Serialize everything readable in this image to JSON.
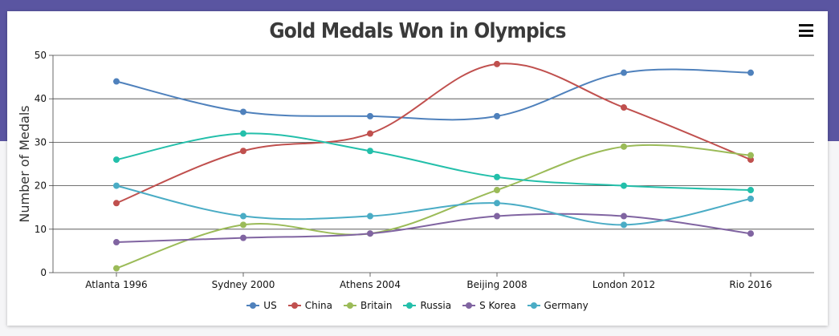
{
  "chart_data": {
    "type": "line",
    "title": "Gold Medals Won in Olympics",
    "ylabel": "Number of Medals",
    "xlabel": "",
    "categories": [
      "Atlanta 1996",
      "Sydney 2000",
      "Athens 2004",
      "Beijing 2008",
      "London 2012",
      "Rio 2016"
    ],
    "ylim": [
      0,
      50
    ],
    "yticks": [
      0,
      10,
      20,
      30,
      40,
      50
    ],
    "grid": true,
    "legend_position": "bottom",
    "series": [
      {
        "name": "US",
        "color": "#4f81bc",
        "values": [
          44,
          37,
          36,
          36,
          46,
          46
        ]
      },
      {
        "name": "China",
        "color": "#c0504e",
        "values": [
          16,
          28,
          32,
          48,
          38,
          26
        ]
      },
      {
        "name": "Britain",
        "color": "#9bbb58",
        "values": [
          1,
          11,
          9,
          19,
          29,
          27
        ]
      },
      {
        "name": "Russia",
        "color": "#23bfaa",
        "values": [
          26,
          32,
          28,
          22,
          20,
          19
        ]
      },
      {
        "name": "S Korea",
        "color": "#8064a1",
        "values": [
          7,
          8,
          9,
          13,
          13,
          9
        ]
      },
      {
        "name": "Germany",
        "color": "#4aacc5",
        "values": [
          20,
          13,
          13,
          16,
          11,
          17
        ]
      }
    ]
  },
  "toolbar": {
    "menu_icon": "hamburger-menu-icon"
  }
}
